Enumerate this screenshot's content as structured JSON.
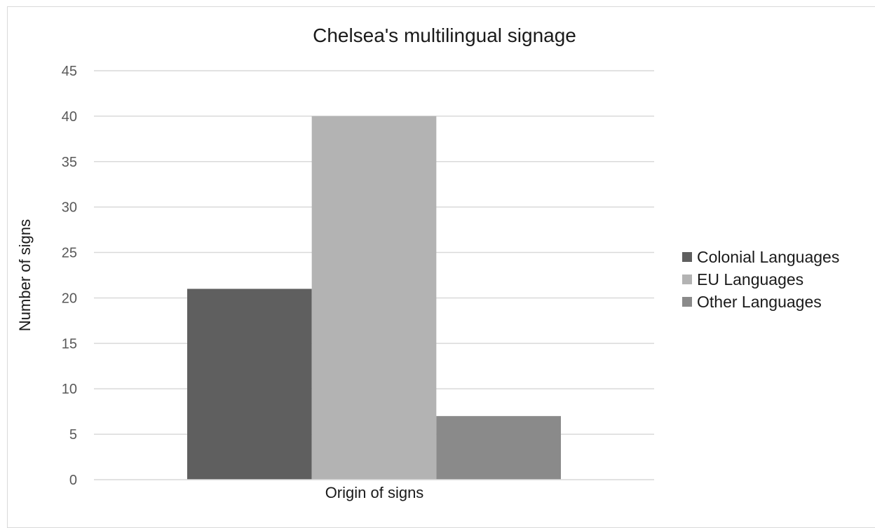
{
  "chart_data": {
    "type": "bar",
    "title": "Chelsea's multilingual signage",
    "xlabel": "Origin of signs",
    "ylabel": "Number of signs",
    "categories": [
      "Origin of signs"
    ],
    "series": [
      {
        "name": "Colonial Languages",
        "color": "#5f5f5f",
        "values": [
          21
        ]
      },
      {
        "name": "EU Languages",
        "color": "#b3b3b3",
        "values": [
          40
        ]
      },
      {
        "name": "Other Languages",
        "color": "#8a8a8a",
        "values": [
          7
        ]
      }
    ],
    "ylim": [
      0,
      45
    ],
    "yticks": [
      "0",
      "5",
      "10",
      "15",
      "20",
      "25",
      "30",
      "35",
      "40",
      "45"
    ],
    "grid": true,
    "legend_position": "right"
  }
}
